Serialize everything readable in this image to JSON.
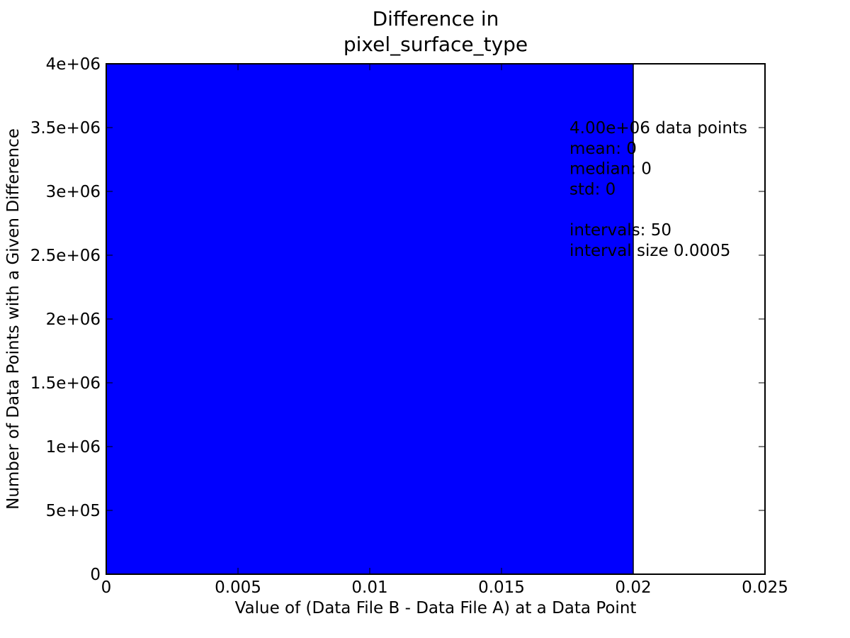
{
  "chart_data": {
    "type": "bar",
    "title_lines": [
      "Difference in",
      "pixel_surface_type"
    ],
    "xlabel": "Value of (Data File B - Data File A) at a Data Point",
    "ylabel": "Number of Data Points with a Given Difference",
    "xlim": [
      0,
      0.025
    ],
    "ylim": [
      0,
      4000000
    ],
    "xticks": [
      {
        "value": 0,
        "label": "0"
      },
      {
        "value": 0.005,
        "label": "0.005"
      },
      {
        "value": 0.01,
        "label": "0.01"
      },
      {
        "value": 0.015,
        "label": "0.015"
      },
      {
        "value": 0.02,
        "label": "0.02"
      },
      {
        "value": 0.025,
        "label": "0.025"
      }
    ],
    "yticks": [
      {
        "value": 0,
        "label": "0"
      },
      {
        "value": 500000,
        "label": "5e+05"
      },
      {
        "value": 1000000,
        "label": "1e+06"
      },
      {
        "value": 1500000,
        "label": "1.5e+06"
      },
      {
        "value": 2000000,
        "label": "2e+06"
      },
      {
        "value": 2500000,
        "label": "2.5e+06"
      },
      {
        "value": 3000000,
        "label": "3e+06"
      },
      {
        "value": 3500000,
        "label": "3.5e+06"
      },
      {
        "value": 4000000,
        "label": "4e+06"
      }
    ],
    "bars": [
      {
        "x_start": 0,
        "x_end": 0.02,
        "value": 4000000
      }
    ],
    "bar_color": "#0000ff",
    "grid": false,
    "annotation_lines": [
      "4.00e+06 data points",
      "mean: 0",
      "median: 0",
      "std: 0",
      "",
      "intervals: 50",
      "interval size 0.0005"
    ],
    "annotation_placement": "top-right"
  }
}
